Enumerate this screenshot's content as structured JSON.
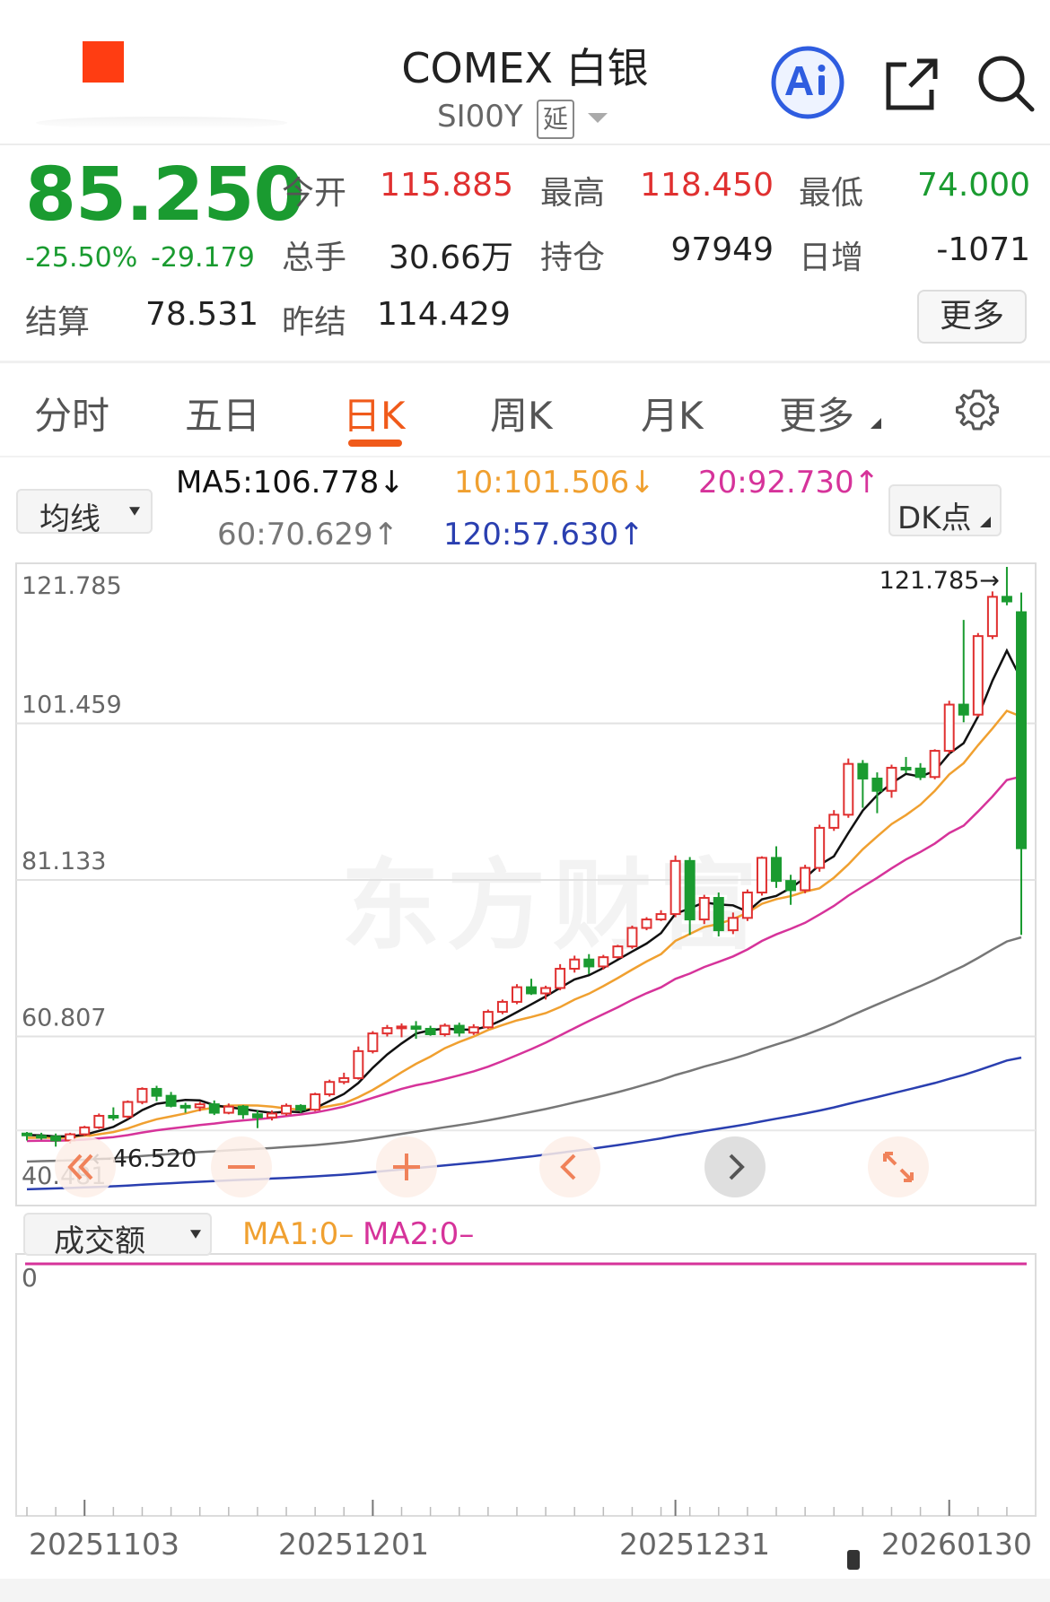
{
  "header": {
    "title": "COMEX 白银",
    "code": "SI00Y",
    "delay_tag": "延"
  },
  "quote": {
    "price": "85.250",
    "change_pct": "-25.50%",
    "change": "-29.179",
    "fields": [
      {
        "label": "今开",
        "value": "115.885",
        "color": "#e03030"
      },
      {
        "label": "最高",
        "value": "118.450",
        "color": "#e03030"
      },
      {
        "label": "最低",
        "value": "74.000",
        "color": "#1a9b30"
      },
      {
        "label": "总手",
        "value": "30.66万",
        "color": "#222222"
      },
      {
        "label": "持仓",
        "value": "97949",
        "color": "#222222"
      },
      {
        "label": "日增",
        "value": "-1071",
        "color": "#222222"
      },
      {
        "label": "结算",
        "value": "78.531",
        "color": "#222222"
      },
      {
        "label": "昨结",
        "value": "114.429",
        "color": "#222222"
      }
    ],
    "more_label": "更多"
  },
  "tabs": [
    {
      "label": "分时",
      "active": false
    },
    {
      "label": "五日",
      "active": false
    },
    {
      "label": "日K",
      "active": true
    },
    {
      "label": "周K",
      "active": false
    },
    {
      "label": "月K",
      "active": false
    },
    {
      "label": "更多",
      "active": false
    }
  ],
  "indicators": {
    "selector": "均线",
    "ma5": "MA5:106.778↓",
    "ma10": "10:101.506↓",
    "ma20": "20:92.730↑",
    "ma60": "60:70.629↑",
    "ma120": "120:57.630↑",
    "dk_label": "DK点",
    "colors": {
      "ma5": "#111111",
      "ma10": "#f0a030",
      "ma20": "#d6339a",
      "ma60": "#777777",
      "ma120": "#2a3fb0"
    }
  },
  "volume": {
    "selector": "成交额",
    "ma1": "MA1:0–",
    "ma2": "MA2:0–",
    "zero_label": "0"
  },
  "chart_data": {
    "type": "candlestick",
    "y_ticks": [
      "121.785",
      "101.459",
      "81.133",
      "60.807",
      "40.481"
    ],
    "ylim": [
      40.481,
      121.785
    ],
    "x_ticks": [
      "20251103",
      "20251201",
      "20251231",
      "20260130"
    ],
    "high_marker": "121.785→",
    "low_marker": "←46.520",
    "up_color": "#e03030",
    "down_color": "#1a9b30",
    "candles": [
      [
        48.2,
        48.4,
        47.3,
        48.0
      ],
      [
        47.9,
        48.3,
        47.4,
        47.8
      ],
      [
        47.8,
        48.2,
        46.5,
        47.3
      ],
      [
        47.3,
        48.3,
        46.9,
        48.1
      ],
      [
        48.1,
        49.2,
        47.9,
        49.0
      ],
      [
        49.0,
        50.8,
        48.8,
        50.5
      ],
      [
        50.5,
        51.6,
        49.9,
        50.4
      ],
      [
        50.4,
        52.5,
        50.1,
        52.3
      ],
      [
        52.3,
        54.2,
        52.0,
        54.0
      ],
      [
        54.0,
        54.4,
        52.4,
        53.1
      ],
      [
        53.1,
        53.6,
        51.6,
        51.8
      ],
      [
        51.8,
        52.2,
        50.9,
        51.6
      ],
      [
        51.6,
        52.3,
        51.1,
        52.0
      ],
      [
        52.0,
        52.5,
        50.6,
        50.9
      ],
      [
        50.9,
        52.1,
        50.7,
        51.7
      ],
      [
        51.7,
        51.9,
        50.1,
        50.7
      ],
      [
        50.7,
        51.2,
        48.9,
        50.3
      ],
      [
        50.3,
        51.2,
        49.9,
        50.8
      ],
      [
        50.8,
        52.1,
        50.5,
        51.8
      ],
      [
        51.8,
        52.0,
        50.9,
        51.3
      ],
      [
        51.3,
        53.5,
        51.1,
        53.3
      ],
      [
        53.3,
        55.2,
        53.0,
        54.9
      ],
      [
        54.9,
        56.1,
        54.6,
        55.4
      ],
      [
        55.4,
        59.5,
        55.2,
        58.9
      ],
      [
        58.9,
        61.5,
        58.6,
        61.2
      ],
      [
        61.2,
        62.3,
        60.8,
        61.9
      ],
      [
        61.9,
        62.5,
        60.7,
        62.1
      ],
      [
        62.1,
        62.8,
        60.5,
        61.8
      ],
      [
        61.8,
        62.2,
        60.9,
        61.1
      ],
      [
        61.1,
        62.5,
        60.8,
        62.2
      ],
      [
        62.2,
        62.6,
        60.8,
        61.3
      ],
      [
        61.3,
        62.4,
        61.0,
        62.0
      ],
      [
        62.0,
        64.3,
        61.8,
        64.0
      ],
      [
        64.0,
        65.6,
        63.7,
        65.3
      ],
      [
        65.3,
        67.6,
        65.0,
        67.2
      ],
      [
        67.2,
        68.3,
        66.2,
        66.4
      ],
      [
        66.4,
        67.4,
        65.6,
        67.1
      ],
      [
        67.1,
        70.2,
        66.8,
        69.6
      ],
      [
        69.6,
        71.3,
        69.1,
        70.8
      ],
      [
        70.8,
        71.5,
        68.9,
        69.9
      ],
      [
        69.9,
        71.4,
        69.5,
        71.1
      ],
      [
        71.1,
        72.7,
        70.9,
        72.5
      ],
      [
        72.5,
        75.2,
        72.2,
        74.9
      ],
      [
        74.9,
        76.3,
        74.6,
        76.0
      ],
      [
        76.0,
        77.2,
        75.8,
        76.7
      ],
      [
        76.7,
        84.3,
        76.3,
        83.6
      ],
      [
        83.6,
        84.1,
        74.0,
        76.0
      ],
      [
        76.0,
        79.2,
        75.4,
        78.8
      ],
      [
        78.8,
        79.5,
        73.8,
        74.6
      ],
      [
        74.6,
        76.9,
        74.1,
        76.2
      ],
      [
        76.2,
        79.9,
        75.8,
        79.5
      ],
      [
        79.5,
        84.2,
        79.1,
        84.0
      ],
      [
        84.0,
        85.5,
        80.1,
        81.0
      ],
      [
        81.0,
        81.8,
        77.9,
        79.8
      ],
      [
        79.8,
        83.1,
        79.4,
        82.7
      ],
      [
        82.7,
        88.3,
        82.2,
        87.9
      ],
      [
        87.9,
        90.2,
        87.5,
        89.6
      ],
      [
        89.6,
        96.9,
        89.2,
        96.2
      ],
      [
        96.2,
        96.7,
        90.5,
        94.3
      ],
      [
        94.3,
        95.1,
        89.8,
        92.7
      ],
      [
        92.7,
        96.1,
        91.8,
        95.7
      ],
      [
        95.7,
        97.1,
        95.0,
        95.6
      ],
      [
        95.6,
        96.3,
        94.1,
        94.5
      ],
      [
        94.5,
        98.1,
        94.2,
        97.9
      ],
      [
        97.9,
        104.4,
        97.5,
        103.9
      ],
      [
        103.9,
        114.9,
        101.6,
        102.6
      ],
      [
        102.6,
        113.2,
        102.3,
        112.8
      ],
      [
        112.8,
        118.6,
        112.4,
        117.9
      ],
      [
        117.9,
        121.785,
        116.8,
        117.3
      ],
      [
        115.9,
        118.45,
        74.0,
        85.25
      ]
    ]
  }
}
